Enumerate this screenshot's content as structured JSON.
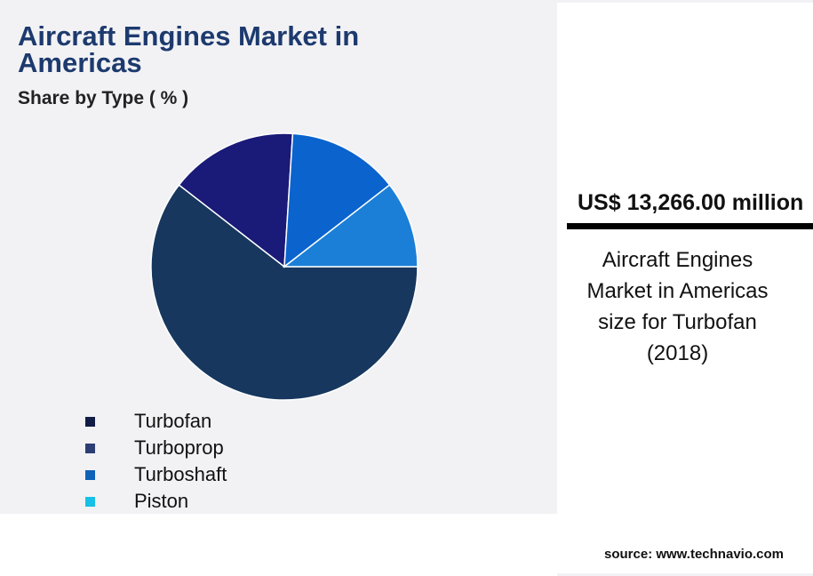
{
  "chart_data": {
    "type": "pie",
    "title": "Aircraft Engines Market in Americas",
    "subtitle": "Share by Type ( % )",
    "categories": [
      "Turbofan",
      "Turboprop",
      "Turboshaft",
      "Piston"
    ],
    "values": [
      60.5,
      15.5,
      13.5,
      10.5
    ],
    "colors": [
      "#17375e",
      "#1a1a78",
      "#0b63ce",
      "#1b7fd8"
    ],
    "legend_colors": [
      "#121d45",
      "#2c3e73",
      "#0e62b8",
      "#17c0e6"
    ],
    "legend": "bottom-left"
  },
  "stat": {
    "value": "US$ 13,266.00 million",
    "description_lines": [
      "Aircraft Engines",
      "Market in Americas",
      "size for Turbofan",
      "(2018)"
    ]
  },
  "source": "source: www.technavio.com"
}
